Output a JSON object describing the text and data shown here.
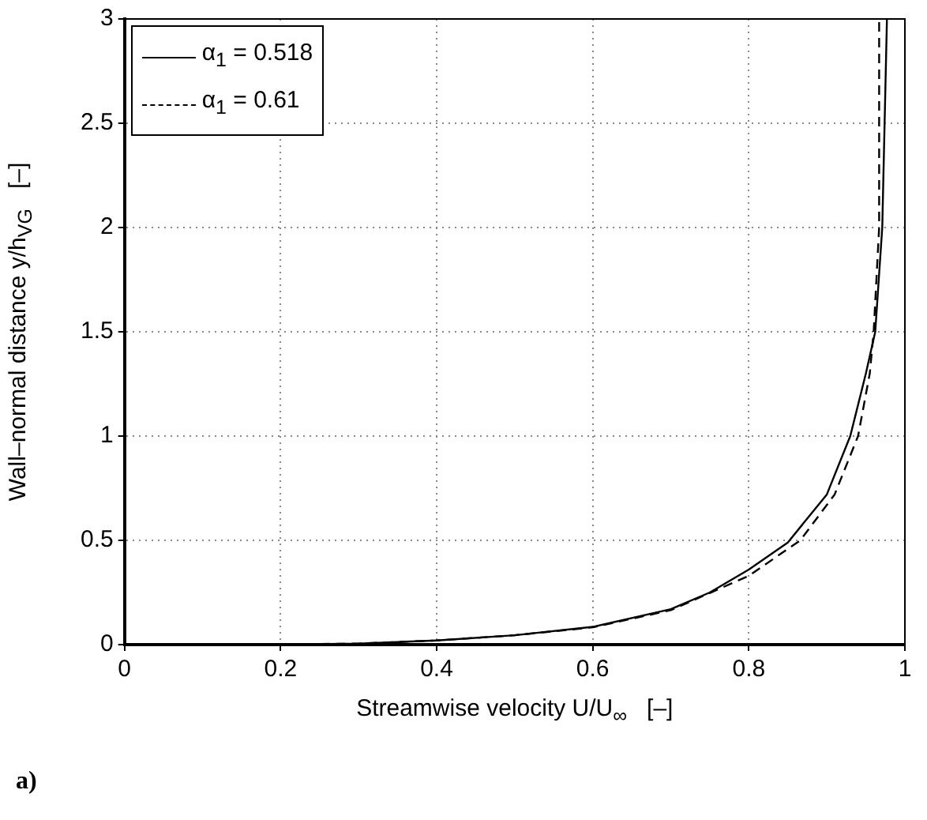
{
  "chart_data": {
    "type": "line",
    "xlabel": "Streamwise velocity U/U$_{∞}$   [–]",
    "ylabel": "Wall–normal distance y/h$_{VG}$   [–]",
    "annotations": [
      "a)"
    ],
    "xlim": [
      0,
      1
    ],
    "xticks": [
      0,
      0.2,
      0.4,
      0.6,
      0.8,
      1
    ],
    "ylim": [
      0,
      3
    ],
    "yticks": [
      0,
      0.5,
      1,
      1.5,
      2,
      2.5,
      3
    ],
    "grid": true,
    "legend": "top left",
    "marker": "none",
    "series": [
      {
        "name": "α$_{1}$ = 0.518",
        "color": "#000000",
        "line_style": "solid",
        "x": [
          0.2,
          0.3,
          0.4,
          0.5,
          0.6,
          0.7,
          0.75,
          0.8,
          0.85,
          0.9,
          0.93,
          0.95,
          0.962,
          0.971,
          0.974,
          0.977
        ],
        "values": [
          0,
          0.005,
          0.02,
          0.045,
          0.085,
          0.17,
          0.25,
          0.36,
          0.49,
          0.72,
          1.0,
          1.3,
          1.5,
          2,
          2.5,
          3
        ]
      },
      {
        "name": "α$_{1}$ = 0.61",
        "color": "#000000",
        "line_style": "dashed",
        "x": [
          0.17,
          0.3,
          0.4,
          0.5,
          0.6,
          0.7,
          0.8,
          0.866,
          0.91,
          0.94,
          0.955,
          0.96,
          0.967,
          0.967
        ],
        "values": [
          0,
          0.005,
          0.02,
          0.045,
          0.083,
          0.165,
          0.33,
          0.5,
          0.72,
          1.0,
          1.3,
          1.5,
          2,
          3
        ]
      }
    ]
  }
}
